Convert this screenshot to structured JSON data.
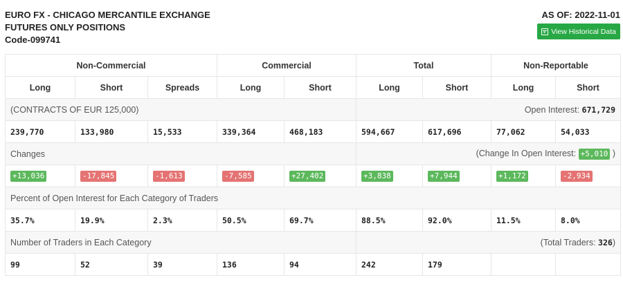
{
  "header": {
    "line1": "EURO FX - CHICAGO MERCANTILE EXCHANGE",
    "line2": "FUTURES ONLY POSITIONS",
    "line3": "Code-099741",
    "as_of": "AS OF: 2022-11-01",
    "history_button": "View Historical Data"
  },
  "groups": [
    "Non-Commercial",
    "Commercial",
    "Total",
    "Non-Reportable"
  ],
  "columns": [
    "Long",
    "Short",
    "Spreads",
    "Long",
    "Short",
    "Long",
    "Short",
    "Long",
    "Short"
  ],
  "contracts_label": "(CONTRACTS OF EUR 125,000)",
  "open_interest_label": "Open Interest:",
  "open_interest_value": "671,729",
  "positions": [
    "239,770",
    "133,980",
    "15,533",
    "339,364",
    "468,183",
    "594,667",
    "617,696",
    "77,062",
    "54,033"
  ],
  "changes_label": "Changes",
  "change_oi_prefix": "(Change In Open Interest:",
  "change_oi_value": "+5,010",
  "change_oi_suffix": ")",
  "changes": [
    "+13,036",
    "-17,845",
    "-1,613",
    "-7,585",
    "+27,402",
    "+3,838",
    "+7,944",
    "+1,172",
    "-2,934"
  ],
  "percent_label": "Percent of Open Interest for Each Category of Traders",
  "percents": [
    "35.7%",
    "19.9%",
    "2.3%",
    "50.5%",
    "69.7%",
    "88.5%",
    "92.0%",
    "11.5%",
    "8.0%"
  ],
  "traders_label": "Number of Traders in Each Category",
  "total_traders_prefix": "(Total Traders:",
  "total_traders_value": "326",
  "total_traders_suffix": ")",
  "traders": [
    "99",
    "52",
    "39",
    "136",
    "94",
    "242",
    "179",
    "",
    ""
  ],
  "colors": {
    "positive": "#5cb85c",
    "negative": "#e57373",
    "button": "#28a745"
  },
  "icons": {
    "history_button": "calendar-plus-icon"
  }
}
